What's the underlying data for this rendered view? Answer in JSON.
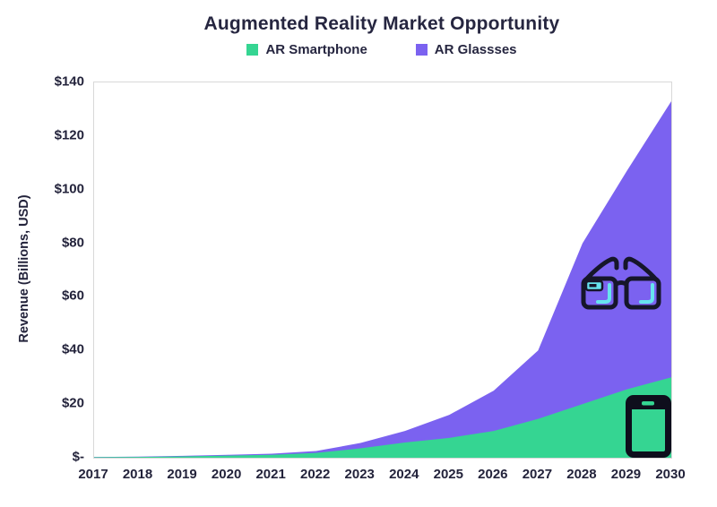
{
  "title": "Augmented Reality Market Opportunity",
  "legend": {
    "items": [
      {
        "label": "AR Smartphone",
        "color": "#35d592"
      },
      {
        "label": "AR Glassses",
        "color": "#7b62f0"
      }
    ]
  },
  "y_axis": {
    "title": "Revenue (Billions, USD)",
    "ticks": [
      {
        "label": "$140",
        "value": 140
      },
      {
        "label": "$120",
        "value": 120
      },
      {
        "label": "$100",
        "value": 100
      },
      {
        "label": "$80",
        "value": 80
      },
      {
        "label": "$60",
        "value": 60
      },
      {
        "label": "$40",
        "value": 40
      },
      {
        "label": "$20",
        "value": 20
      },
      {
        "label": "$-",
        "value": 0
      }
    ]
  },
  "x_axis": {
    "ticks": [
      "2017",
      "2018",
      "2019",
      "2020",
      "2021",
      "2022",
      "2023",
      "2024",
      "2025",
      "2026",
      "2027",
      "2028",
      "2029",
      "2030"
    ]
  },
  "chart_data": {
    "type": "area",
    "stacked": true,
    "title": "Augmented Reality Market Opportunity",
    "xlabel": "",
    "ylabel": "Revenue (Billions, USD)",
    "x": [
      2017,
      2018,
      2019,
      2020,
      2021,
      2022,
      2023,
      2024,
      2025,
      2026,
      2027,
      2028,
      2029,
      2030
    ],
    "series": [
      {
        "name": "AR Smartphone",
        "color": "#35d592",
        "values": [
          0.2,
          0.3,
          0.5,
          0.8,
          1.1,
          1.8,
          3.5,
          5.7,
          7.4,
          10,
          14.5,
          20,
          25.5,
          30
        ]
      },
      {
        "name": "AR Glassses",
        "color": "#7b62f0",
        "values": [
          0.1,
          0.1,
          0.2,
          0.3,
          0.4,
          0.7,
          2,
          4.3,
          8.6,
          15,
          25.5,
          60,
          81.5,
          103
        ]
      }
    ],
    "stacked_totals": [
      0.3,
      0.4,
      0.7,
      1.1,
      1.5,
      2.5,
      5.5,
      10,
      16,
      25,
      40,
      80,
      107,
      133
    ],
    "ylim": [
      0,
      140
    ],
    "ytick_values": [
      0,
      20,
      40,
      60,
      80,
      100,
      120,
      140
    ],
    "grid": false,
    "legend_position": "top",
    "icons": [
      "ar-glasses",
      "smartphone"
    ]
  }
}
